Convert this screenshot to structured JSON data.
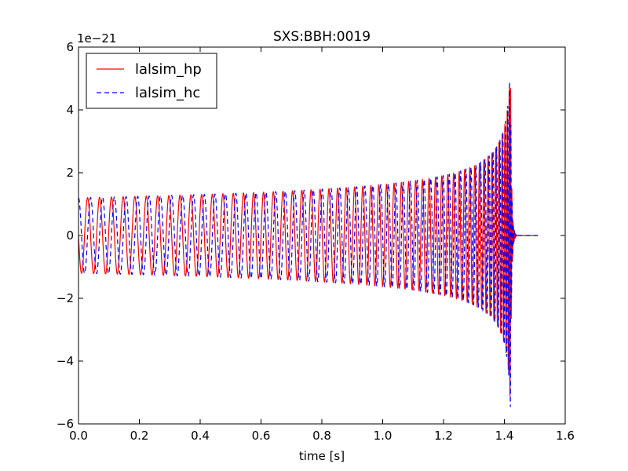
{
  "chart_data": {
    "type": "line",
    "title": "SXS:BBH:0019",
    "xlabel": "time [s]",
    "ylabel": "",
    "y_offset_label": "1e−21",
    "xlim": [
      0.0,
      1.6
    ],
    "ylim": [
      -6,
      6
    ],
    "xticks": [
      0.0,
      0.2,
      0.4,
      0.6,
      0.8,
      1.0,
      1.2,
      1.4,
      1.6
    ],
    "xtick_labels": [
      "0.0",
      "0.2",
      "0.4",
      "0.6",
      "0.8",
      "1.0",
      "1.2",
      "1.4",
      "1.6"
    ],
    "yticks": [
      -6,
      -4,
      -2,
      0,
      2,
      4,
      6
    ],
    "ytick_labels": [
      "−6",
      "−4",
      "−2",
      "0",
      "2",
      "4",
      "6"
    ],
    "grid": false,
    "legend_position": "top-left",
    "series": [
      {
        "name": "lalsim_hp",
        "color": "#ff0000",
        "style": "solid",
        "phase": 0.5
      },
      {
        "name": "lalsim_hc",
        "color": "#0000ff",
        "style": "dashed",
        "phase": 0.0
      }
    ],
    "signal": {
      "t_start": 0.0,
      "t_end": 1.51,
      "t_merger": 1.42,
      "initial_amplitude": 1.2,
      "peak_amplitude": 5.6,
      "initial_frequency_hz": 25
    }
  }
}
